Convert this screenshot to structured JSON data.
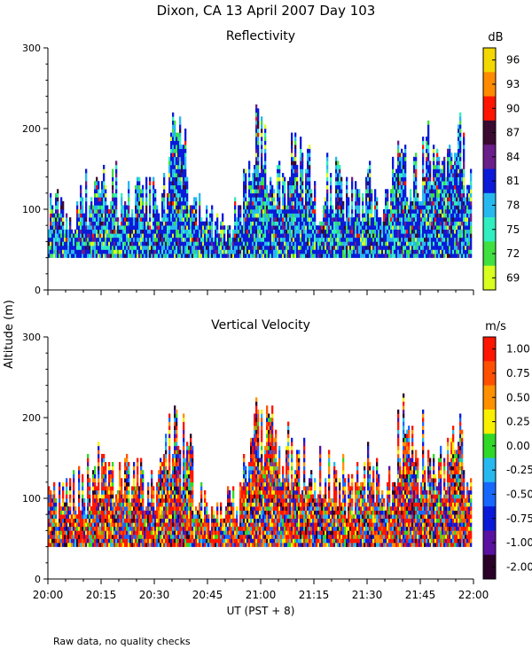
{
  "figure_title": "Dixon, CA 13 April 2007  Day 103",
  "ylabel": "Altitude (m)",
  "xlabel": "UT  (PST + 8)",
  "footnote": "Raw data, no quality checks",
  "chart_data": [
    {
      "type": "heatmap",
      "title": "Reflectivity",
      "colorbar_label": "dB",
      "colorbar_ticks": [
        "96",
        "93",
        "90",
        "87",
        "84",
        "81",
        "78",
        "75",
        "72",
        "69"
      ],
      "colorbar_colors": [
        "#f2d800",
        "#ff8a00",
        "#ff1500",
        "#3a0a30",
        "#6a1e8a",
        "#0a1ad8",
        "#28b8f0",
        "#30eec0",
        "#40e040",
        "#d8ff20"
      ],
      "ylim": [
        0,
        300
      ],
      "yticks": [
        0,
        100,
        200,
        300
      ],
      "data_floor_m": 40,
      "approx_peak_altitude_m": 240
    },
    {
      "type": "heatmap",
      "title": "Vertical Velocity",
      "colorbar_label": "m/s",
      "colorbar_ticks": [
        "1.00",
        "0.75",
        "0.50",
        "0.25",
        "0.00",
        "-0.25",
        "-0.50",
        "-0.75",
        "-1.00",
        "-2.00"
      ],
      "colorbar_colors": [
        "#ff1500",
        "#ff5000",
        "#ff9000",
        "#f8f000",
        "#30d828",
        "#28b8f0",
        "#1868ff",
        "#0a1ad8",
        "#5a10a0",
        "#2a0028"
      ],
      "ylim": [
        0,
        300
      ],
      "yticks": [
        0,
        100,
        200,
        300
      ],
      "data_floor_m": 40,
      "approx_peak_altitude_m": 240
    }
  ],
  "x_axis": {
    "xlim_minutes": [
      0,
      120
    ],
    "tick_labels": [
      "20:00",
      "20:15",
      "20:30",
      "20:45",
      "21:00",
      "21:15",
      "21:30",
      "21:45",
      "22:00"
    ],
    "tick_minutes": [
      0,
      15,
      30,
      45,
      60,
      75,
      90,
      105,
      120
    ]
  },
  "echo_top_profile": {
    "minutes": [
      0,
      5,
      10,
      15,
      20,
      25,
      30,
      33,
      36,
      39,
      42,
      45,
      50,
      54,
      57,
      60,
      63,
      66,
      70,
      73,
      76,
      80,
      85,
      90,
      95,
      100,
      103,
      106,
      109,
      112,
      116,
      120
    ],
    "top_altitude_m": [
      130,
      110,
      130,
      150,
      140,
      135,
      120,
      160,
      210,
      180,
      120,
      90,
      95,
      110,
      200,
      215,
      190,
      160,
      200,
      160,
      140,
      170,
      120,
      150,
      125,
      200,
      160,
      185,
      175,
      150,
      195,
      120
    ]
  }
}
